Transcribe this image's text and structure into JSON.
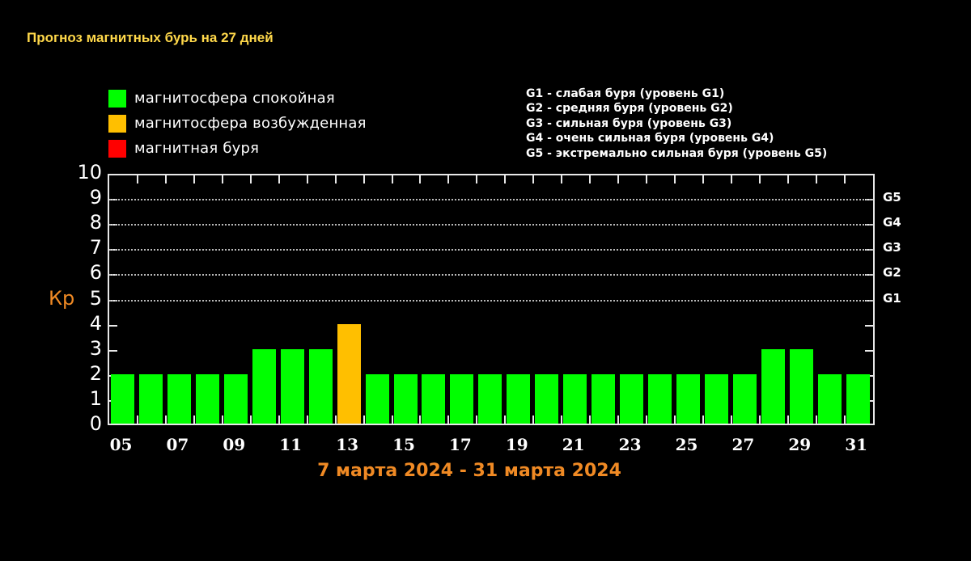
{
  "title": "Прогноз магнитных бурь на 27 дней",
  "legend": {
    "items": [
      {
        "label": "магнитосфера спокойная",
        "color": "#00ff00"
      },
      {
        "label": "магнитосфера возбужденная",
        "color": "#ffbf00"
      },
      {
        "label": "магнитная буря",
        "color": "#ff0000"
      }
    ]
  },
  "g_legend": {
    "items": [
      "G1 - слабая буря (уровень G1)",
      "G2 - средняя буря (уровень G2)",
      "G3 - сильная буря (уровень G3)",
      "G4 - очень сильная буря (уровень G4)",
      "G5 - экстремально сильная буря (уровень G5)"
    ]
  },
  "axis": {
    "ylabel": "Кр",
    "yticks": [
      "0",
      "1",
      "2",
      "3",
      "4",
      "5",
      "6",
      "7",
      "8",
      "9",
      "10"
    ],
    "g_levels": [
      {
        "label": "G1",
        "kp": 5
      },
      {
        "label": "G2",
        "kp": 6
      },
      {
        "label": "G3",
        "kp": 7
      },
      {
        "label": "G4",
        "kp": 8
      },
      {
        "label": "G5",
        "kp": 9
      }
    ],
    "xticks": [
      "05",
      "07",
      "09",
      "11",
      "13",
      "15",
      "17",
      "19",
      "21",
      "23",
      "25",
      "27",
      "29",
      "31"
    ]
  },
  "date_range": "7 марта 2024 - 31 марта 2024",
  "chart_data": {
    "type": "bar",
    "title": "Прогноз магнитных бурь на 27 дней",
    "xlabel": "7 марта 2024 - 31 марта 2024",
    "ylabel": "Кр",
    "ylim": [
      0,
      10
    ],
    "grid": "dotted horizontal lines at Kp 5-9",
    "categories": [
      "05",
      "06",
      "07",
      "08",
      "09",
      "10",
      "11",
      "12",
      "13",
      "14",
      "15",
      "16",
      "17",
      "18",
      "19",
      "20",
      "21",
      "22",
      "23",
      "24",
      "25",
      "26",
      "27",
      "28",
      "29",
      "30",
      "31"
    ],
    "values": [
      2,
      2,
      2,
      2,
      2,
      3,
      3,
      3,
      4,
      2,
      2,
      2,
      2,
      2,
      2,
      2,
      2,
      2,
      2,
      2,
      2,
      2,
      2,
      3,
      3,
      2,
      2
    ],
    "colors": [
      "#00ff00",
      "#00ff00",
      "#00ff00",
      "#00ff00",
      "#00ff00",
      "#00ff00",
      "#00ff00",
      "#00ff00",
      "#ffbf00",
      "#00ff00",
      "#00ff00",
      "#00ff00",
      "#00ff00",
      "#00ff00",
      "#00ff00",
      "#00ff00",
      "#00ff00",
      "#00ff00",
      "#00ff00",
      "#00ff00",
      "#00ff00",
      "#00ff00",
      "#00ff00",
      "#00ff00",
      "#00ff00",
      "#00ff00",
      "#00ff00"
    ],
    "legend": [
      "магнитосфера спокойная",
      "магнитосфера возбужденная",
      "магнитная буря"
    ],
    "annotations": [
      "G1 at Kp 5",
      "G2 at Kp 6",
      "G3 at Kp 7",
      "G4 at Kp 8",
      "G5 at Kp 9"
    ]
  }
}
